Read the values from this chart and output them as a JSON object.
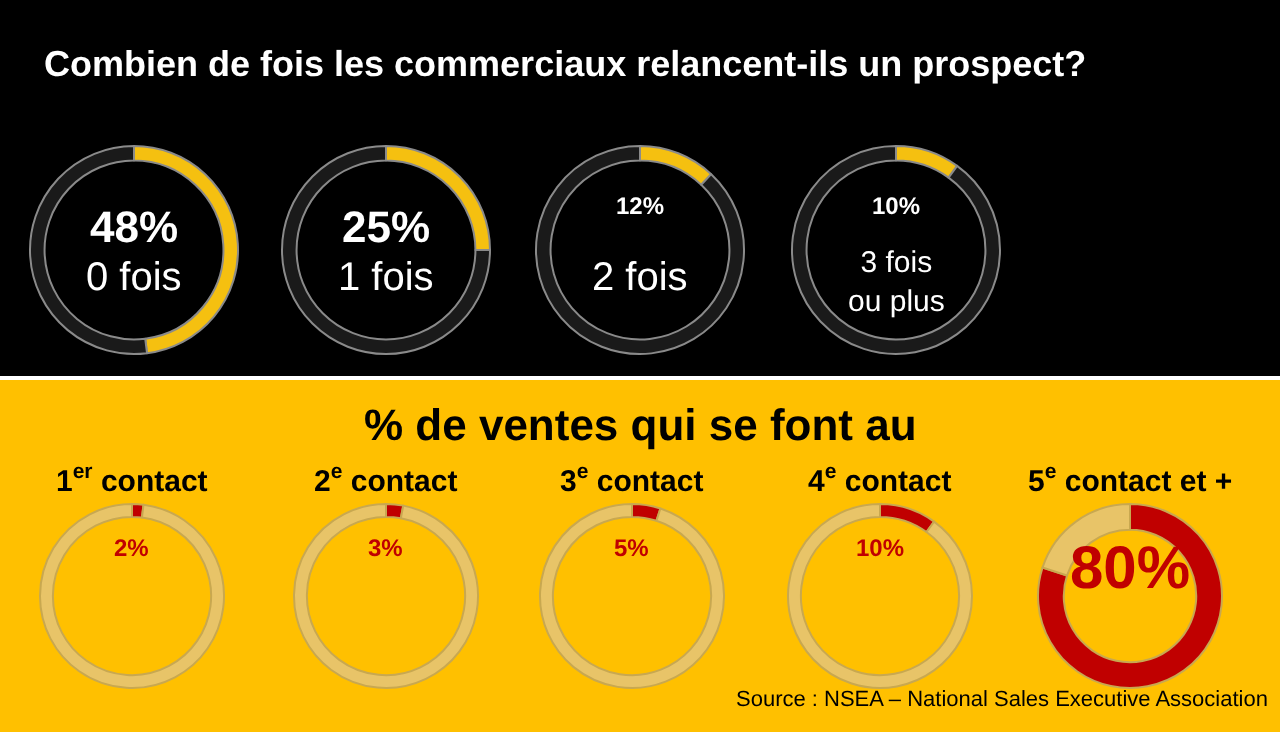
{
  "chart_data": [
    {
      "type": "donut",
      "title": "Combien de fois les commerciaux relancent-ils un prospect?",
      "categories": [
        "0 fois",
        null
      ],
      "values": [
        48,
        52
      ],
      "colors": [
        "#f5c010",
        "#1a1a1a"
      ],
      "value_labels": [
        "48%",
        null
      ],
      "legend": false
    },
    {
      "type": "donut",
      "categories": [
        "1 fois",
        null
      ],
      "values": [
        25,
        75
      ],
      "colors": [
        "#f5c010",
        "#1a1a1a"
      ],
      "value_labels": [
        "25%",
        null
      ],
      "legend": false
    },
    {
      "type": "donut",
      "categories": [
        "2 fois",
        null
      ],
      "values": [
        12,
        88
      ],
      "colors": [
        "#f5c010",
        "#1a1a1a"
      ],
      "value_labels": [
        "12%",
        null
      ],
      "legend": false
    },
    {
      "type": "donut",
      "categories": [
        "3 fois\nou plus",
        null
      ],
      "values": [
        10,
        90
      ],
      "colors": [
        "#f5c010",
        "#1a1a1a"
      ],
      "value_labels": [
        "10%",
        null
      ],
      "legend": false
    },
    {
      "type": "donut",
      "subtitle": "1$^{er}$ contact",
      "categories": [
        null,
        null
      ],
      "values": [
        2,
        98
      ],
      "colors": [
        "#c00000",
        "#e8c468"
      ],
      "value_labels": [
        "2%",
        null
      ],
      "legend": false
    },
    {
      "type": "donut",
      "subtitle": "2$^{e}$ contact",
      "categories": [
        null,
        null
      ],
      "values": [
        3,
        97
      ],
      "colors": [
        "#c00000",
        "#e8c468"
      ],
      "value_labels": [
        "3%",
        null
      ],
      "legend": false
    },
    {
      "type": "donut",
      "title": "% de ventes qui se font au",
      "subtitle": "3$^{e}$ contact",
      "categories": [
        null,
        null
      ],
      "values": [
        5,
        95
      ],
      "colors": [
        "#c00000",
        "#e8c468"
      ],
      "value_labels": [
        "5%",
        null
      ],
      "legend": false
    },
    {
      "type": "donut",
      "subtitle": "4$^{e}$ contact",
      "categories": [
        null,
        null
      ],
      "values": [
        10,
        90
      ],
      "colors": [
        "#c00000",
        "#e8c468"
      ],
      "value_labels": [
        "10%",
        null
      ],
      "legend": false
    },
    {
      "type": "donut",
      "subtitle": "5$^{e}$ contact et +",
      "categories": [
        null,
        null
      ],
      "values": [
        80,
        20
      ],
      "colors": [
        "#c00000",
        "#e8c468"
      ],
      "value_labels": [
        "80%",
        null
      ],
      "legend": false,
      "annotations": [
        "Source : NSEA – National Sales Executive Association"
      ]
    }
  ]
}
